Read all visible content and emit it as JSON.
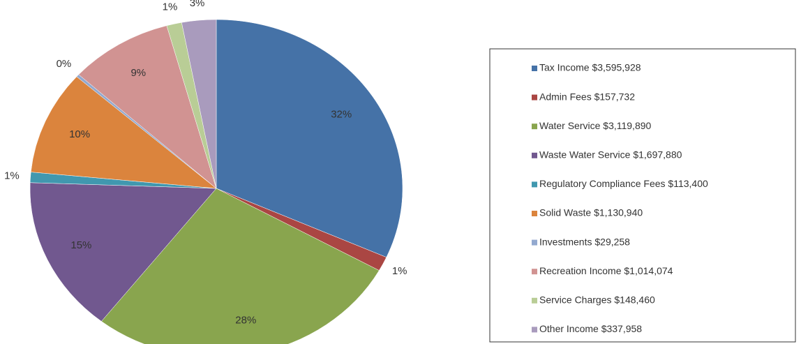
{
  "chart_data": {
    "type": "pie",
    "categories": [
      "Tax Income $3,595,928",
      "Admin Fees $157,732",
      "Water Service $3,119,890",
      "Waste Water Service $1,697,880",
      "Regulatory Compliance Fees $113,400",
      "Solid Waste $1,130,940",
      "Investments $29,258",
      "Recreation Income $1,014,074",
      "Service Charges $148,460",
      "Other Income $337,958"
    ],
    "values": [
      31.69,
      1.39,
      27.5,
      14.97,
      1.0,
      9.97,
      0.26,
      8.94,
      1.31,
      2.98
    ],
    "value_labels": [
      "32%",
      "1%",
      "28%",
      "15%",
      "1%",
      "10%",
      "0%",
      "9%",
      "1%",
      "3%"
    ],
    "colors": [
      "#4572a7",
      "#aa4643",
      "#89a54e",
      "#71588f",
      "#4198af",
      "#db843d",
      "#93a9cf",
      "#d19392",
      "#b9cd96",
      "#a99bbd"
    ],
    "legend": "right"
  }
}
